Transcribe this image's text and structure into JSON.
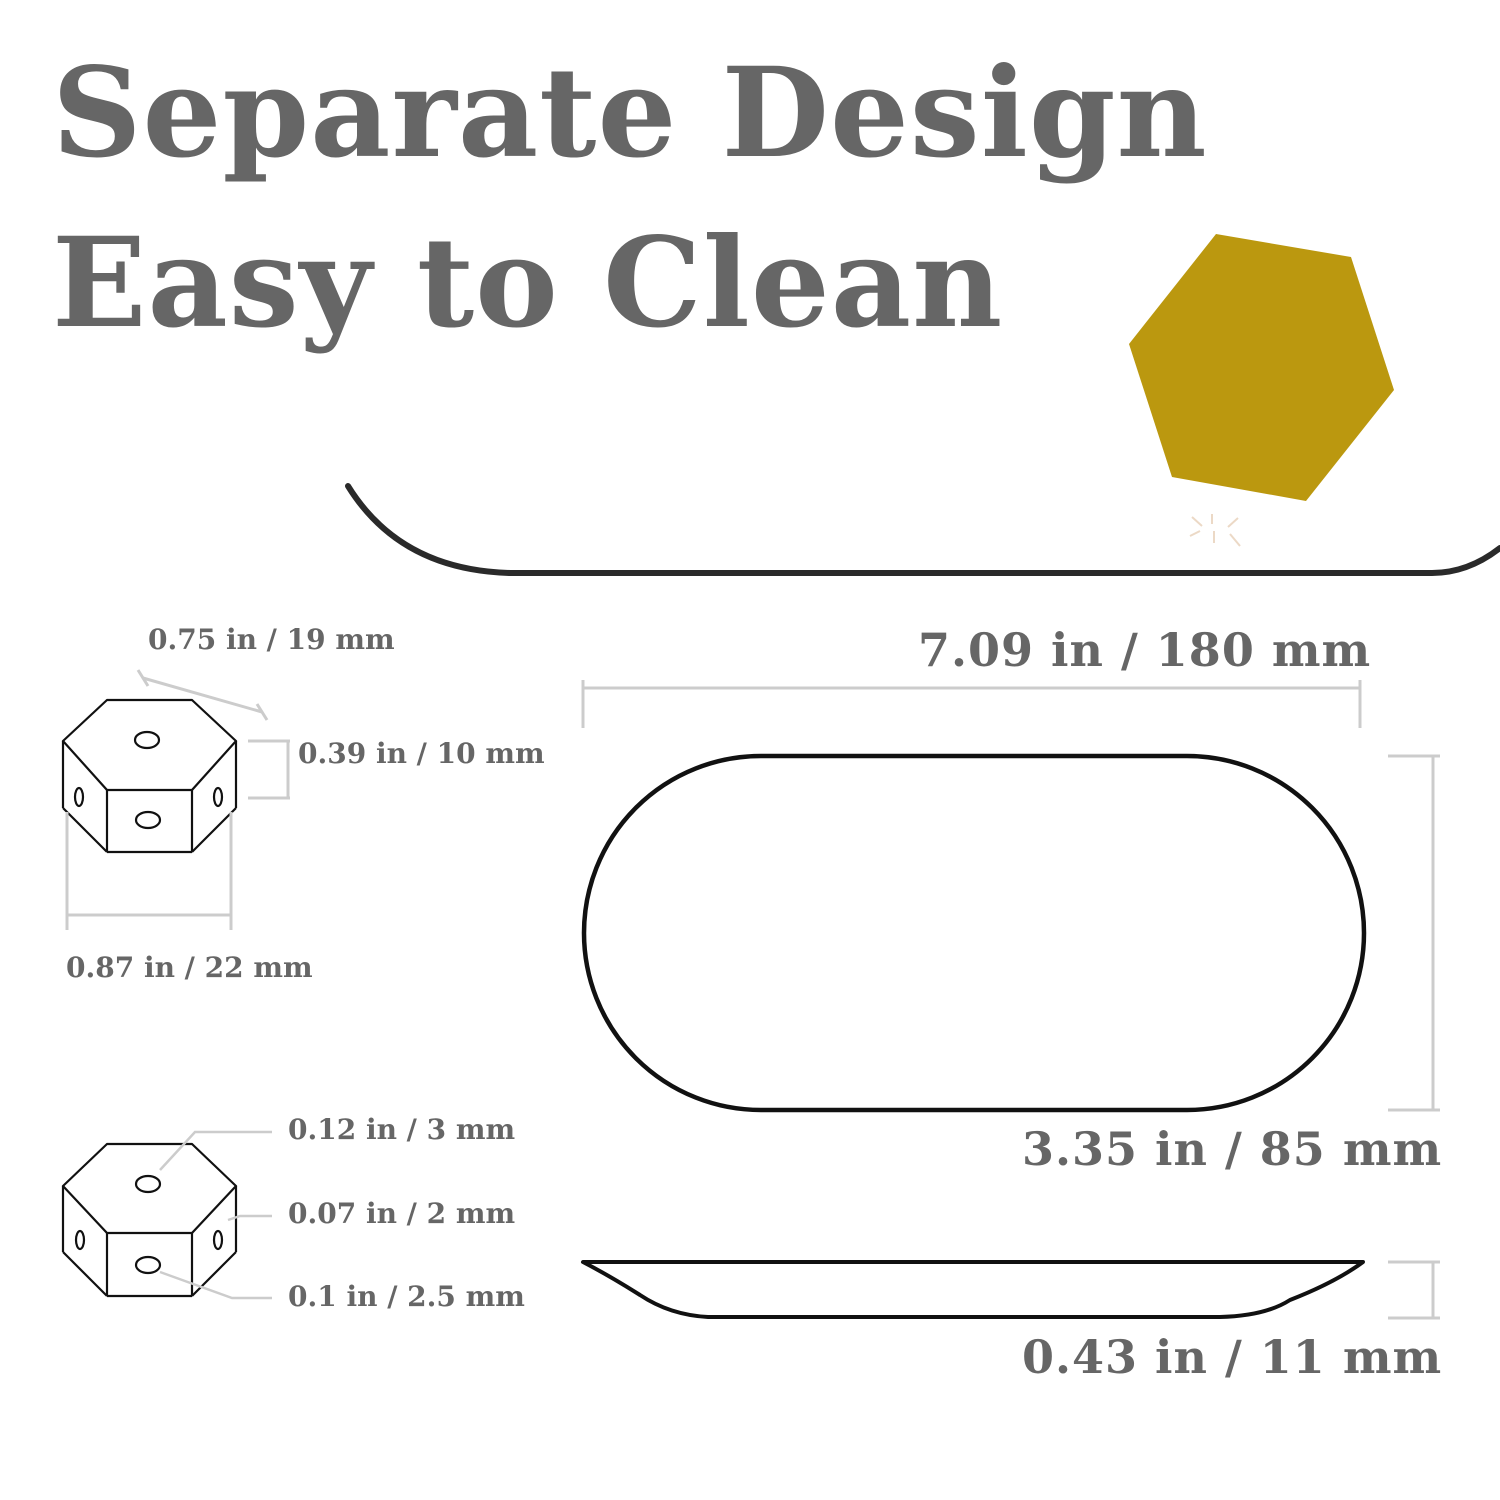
{
  "headline": {
    "line1": "Separate Design",
    "line2": "Easy to Clean"
  },
  "colors": {
    "text": "#666666",
    "accent": "#bb980f",
    "outline": "#111111",
    "dimension_line": "#cccccc",
    "dish_edge": "#2a2a2a"
  },
  "dimensions": {
    "spacer_edge": "0.75 in / 19 mm",
    "spacer_height": "0.39 in / 10 mm",
    "spacer_width": "0.87 in / 22 mm",
    "hole_top": "0.12 in / 3 mm",
    "hole_side": "0.07 in / 2 mm",
    "hole_front": "0.1 in / 2.5 mm",
    "dish_length": "7.09 in / 180 mm",
    "dish_width": "3.35 in / 85 mm",
    "dish_height": "0.43 in / 11 mm"
  }
}
